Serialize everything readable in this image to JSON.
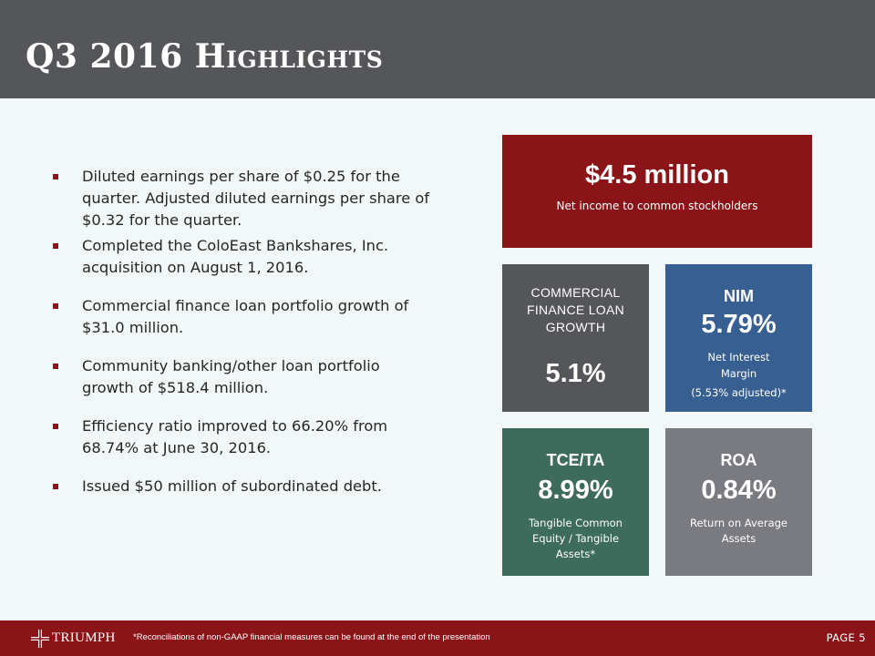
{
  "header": {
    "title": "Q3 2016 Highlights"
  },
  "bullets": [
    "Diluted earnings per share of $0.25 for the quarter.   Adjusted diluted earnings per share of $0.32 for the quarter.",
    "Completed the ColoEast Bankshares, Inc. acquisition on August 1, 2016.",
    "Commercial finance loan portfolio growth of $31.0 million.",
    "Community banking/other loan portfolio growth of $518.4 million.",
    "Efficiency ratio improved to 66.20% from 68.74% at June 30, 2016.",
    "Issued $50 million of subordinated debt."
  ],
  "tiles": {
    "net_income": {
      "value": "$4.5 million",
      "caption": "Net income to common stockholders",
      "color": "#8b1418"
    },
    "commercial_finance": {
      "label": "Commercial Finance Loan Growth",
      "value": "5.1%",
      "color": "#55565a"
    },
    "nim": {
      "heading": "NIM",
      "value": "5.79%",
      "caption_line1": "Net Interest",
      "caption_line2": "Margin",
      "note": "(5.53% adjusted)*",
      "color": "#385f91"
    },
    "tce_ta": {
      "heading": "TCE/TA",
      "value": "8.99%",
      "caption": "Tangible Common Equity / Tangible Assets*",
      "color": "#3d6b5c"
    },
    "roa": {
      "heading": "ROA",
      "value": "0.84%",
      "caption": "Return on Average Assets",
      "color": "#7a7b80"
    }
  },
  "footer": {
    "logo_text": "TRIUMPH",
    "logo_icon": "triumph-cross-icon",
    "footnote": "*Reconciliations of non-GAAP financial measures can be found at the end of the presentation",
    "page_label": "PAGE 5"
  }
}
